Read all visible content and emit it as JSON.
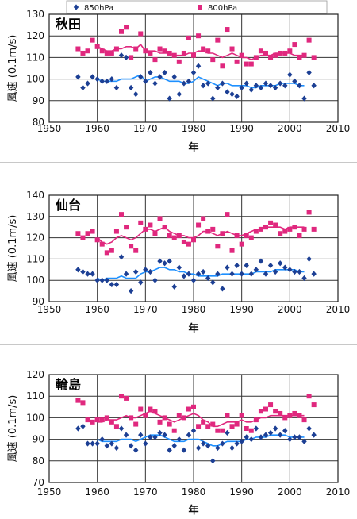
{
  "legend": {
    "s850": "850hPa",
    "s800": "800hPa"
  },
  "colors": {
    "s850": "#1c3f94",
    "s800": "#e0287e",
    "line850": "#1e90ff",
    "line800": "#e0287e"
  },
  "chart_data": [
    {
      "type": "scatter",
      "title": "秋田",
      "xlabel": "年",
      "ylabel": "風速 (0.1m/s)",
      "xlim": [
        1950,
        2010
      ],
      "ylim": [
        80,
        130
      ],
      "xticks": [
        1950,
        1960,
        1970,
        1980,
        1990,
        2000,
        2010
      ],
      "yticks": [
        80,
        90,
        100,
        110,
        120,
        130
      ],
      "grid": true,
      "legend_position": "top",
      "series": [
        {
          "name": "800hPa",
          "x": [
            1956,
            1957,
            1958,
            1959,
            1960,
            1961,
            1962,
            1963,
            1964,
            1965,
            1966,
            1967,
            1968,
            1969,
            1970,
            1971,
            1972,
            1973,
            1974,
            1975,
            1976,
            1977,
            1978,
            1979,
            1980,
            1981,
            1982,
            1983,
            1984,
            1985,
            1986,
            1987,
            1988,
            1989,
            1990,
            1991,
            1992,
            1993,
            1994,
            1995,
            1996,
            1997,
            1998,
            1999,
            2000,
            2001,
            2002,
            2003,
            2004,
            2005
          ],
          "values": [
            114,
            112,
            113,
            118,
            115,
            113,
            112,
            112,
            114,
            122,
            124,
            110,
            114,
            121,
            113,
            112,
            109,
            114,
            113,
            112,
            111,
            108,
            112,
            119,
            111,
            120,
            114,
            113,
            109,
            118,
            106,
            123,
            114,
            108,
            111,
            107,
            107,
            110,
            113,
            112,
            110,
            111,
            112,
            112,
            113,
            116,
            110,
            111,
            118,
            110
          ]
        },
        {
          "name": "850hPa",
          "x": [
            1956,
            1957,
            1958,
            1959,
            1960,
            1961,
            1962,
            1963,
            1964,
            1965,
            1966,
            1967,
            1968,
            1969,
            1970,
            1971,
            1972,
            1973,
            1974,
            1975,
            1976,
            1977,
            1978,
            1979,
            1980,
            1981,
            1982,
            1983,
            1984,
            1985,
            1986,
            1987,
            1988,
            1989,
            1990,
            1991,
            1992,
            1993,
            1994,
            1995,
            1996,
            1997,
            1998,
            1999,
            2000,
            2001,
            2002,
            2003,
            2004,
            2005
          ],
          "values": [
            101,
            96,
            98,
            101,
            100,
            99,
            99,
            100,
            96,
            111,
            110,
            96,
            93,
            101,
            99,
            103,
            98,
            101,
            103,
            91,
            101,
            93,
            98,
            99,
            103,
            106,
            97,
            98,
            91,
            96,
            98,
            94,
            93,
            92,
            96,
            98,
            95,
            97,
            96,
            98,
            97,
            96,
            98,
            97,
            102,
            99,
            97,
            91,
            103,
            97
          ]
        }
      ],
      "trend": {
        "x": [
          1960,
          1961,
          1962,
          1963,
          1964,
          1965,
          1966,
          1967,
          1968,
          1969,
          1970,
          1971,
          1972,
          1973,
          1974,
          1975,
          1976,
          1977,
          1978,
          1979,
          1980,
          1981,
          1982,
          1983,
          1984,
          1985,
          1986,
          1987,
          1988,
          1989,
          1990,
          1991,
          1992,
          1993,
          1994,
          1995,
          1996,
          1997,
          1998,
          1999,
          2000,
          2001,
          2002,
          2003
        ],
        "v800": [
          115,
          114,
          113,
          113,
          114,
          114,
          115,
          115,
          114,
          116,
          113,
          113,
          113,
          112,
          112,
          112,
          111,
          111,
          111,
          112,
          112,
          113,
          113,
          112,
          112,
          111,
          110,
          111,
          112,
          111,
          110,
          110,
          109,
          110,
          111,
          111,
          111,
          112,
          112,
          112,
          112,
          111,
          111,
          111
        ],
        "v850": [
          100,
          99,
          99,
          99,
          99,
          100,
          100,
          100,
          101,
          102,
          99,
          100,
          101,
          101,
          100,
          99,
          99,
          99,
          98,
          98,
          99,
          101,
          100,
          99,
          98,
          97,
          98,
          98,
          97,
          97,
          97,
          97,
          96,
          96,
          97,
          97,
          97,
          97,
          98,
          98,
          98,
          98,
          97,
          97
        ]
      }
    },
    {
      "type": "scatter",
      "title": "仙台",
      "xlabel": "年",
      "ylabel": "風速 (0.1m/s)",
      "xlim": [
        1950,
        2010
      ],
      "ylim": [
        90,
        140
      ],
      "xticks": [
        1950,
        1960,
        1970,
        1980,
        1990,
        2000,
        2010
      ],
      "yticks": [
        90,
        100,
        110,
        120,
        130,
        140
      ],
      "grid": true,
      "series": [
        {
          "name": "800hPa",
          "x": [
            1956,
            1957,
            1958,
            1959,
            1960,
            1961,
            1962,
            1963,
            1964,
            1965,
            1966,
            1967,
            1968,
            1969,
            1970,
            1971,
            1972,
            1973,
            1974,
            1975,
            1976,
            1977,
            1978,
            1979,
            1980,
            1981,
            1982,
            1983,
            1984,
            1985,
            1986,
            1987,
            1988,
            1989,
            1990,
            1991,
            1992,
            1993,
            1994,
            1995,
            1996,
            1997,
            1998,
            1999,
            2000,
            2001,
            2002,
            2003,
            2004,
            2005
          ],
          "values": [
            122,
            120,
            122,
            123,
            119,
            117,
            113,
            114,
            123,
            131,
            125,
            116,
            114,
            127,
            124,
            126,
            122,
            129,
            125,
            121,
            120,
            121,
            118,
            117,
            119,
            126,
            129,
            123,
            124,
            116,
            122,
            131,
            114,
            121,
            117,
            121,
            120,
            123,
            124,
            125,
            127,
            126,
            122,
            123,
            124,
            125,
            121,
            124,
            132,
            124
          ]
        },
        {
          "name": "850hPa",
          "x": [
            1956,
            1957,
            1958,
            1959,
            1960,
            1961,
            1962,
            1963,
            1964,
            1965,
            1966,
            1967,
            1968,
            1969,
            1970,
            1971,
            1972,
            1973,
            1974,
            1975,
            1976,
            1977,
            1978,
            1979,
            1980,
            1981,
            1982,
            1983,
            1984,
            1985,
            1986,
            1987,
            1988,
            1989,
            1990,
            1991,
            1992,
            1993,
            1994,
            1995,
            1996,
            1997,
            1998,
            1999,
            2000,
            2001,
            2002,
            2003,
            2004,
            2005
          ],
          "values": [
            105,
            104,
            103,
            103,
            100,
            100,
            100,
            98,
            98,
            111,
            103,
            95,
            104,
            99,
            105,
            104,
            100,
            109,
            108,
            109,
            97,
            106,
            102,
            103,
            100,
            103,
            104,
            101,
            99,
            103,
            96,
            106,
            103,
            107,
            103,
            107,
            103,
            105,
            109,
            103,
            107,
            104,
            108,
            106,
            105,
            104,
            104,
            101,
            110,
            103
          ]
        }
      ],
      "trend": {
        "x": [
          1960,
          1961,
          1962,
          1963,
          1964,
          1965,
          1966,
          1967,
          1968,
          1969,
          1970,
          1971,
          1972,
          1973,
          1974,
          1975,
          1976,
          1977,
          1978,
          1979,
          1980,
          1981,
          1982,
          1983,
          1984,
          1985,
          1986,
          1987,
          1988,
          1989,
          1990,
          1991,
          1992,
          1993,
          1994,
          1995,
          1996,
          1997,
          1998,
          1999,
          2000,
          2001,
          2002,
          2003
        ],
        "v800": [
          120,
          118,
          117,
          118,
          120,
          121,
          120,
          119,
          120,
          122,
          124,
          124,
          123,
          124,
          125,
          123,
          122,
          121,
          121,
          120,
          120,
          121,
          123,
          123,
          122,
          121,
          122,
          123,
          122,
          121,
          121,
          122,
          123,
          124,
          124,
          125,
          125,
          125,
          125,
          124,
          125,
          125,
          125,
          125
        ],
        "v850": [
          101,
          100,
          101,
          101,
          101,
          102,
          101,
          101,
          101,
          103,
          104,
          104,
          105,
          106,
          106,
          105,
          105,
          104,
          104,
          103,
          103,
          102,
          102,
          102,
          102,
          102,
          103,
          103,
          103,
          103,
          103,
          103,
          103,
          104,
          104,
          104,
          104,
          105,
          105,
          105,
          105,
          105,
          104,
          104
        ]
      }
    },
    {
      "type": "scatter",
      "title": "輪島",
      "xlabel": "年",
      "ylabel": "風速 (0.1m/s)",
      "xlim": [
        1950,
        2010
      ],
      "ylim": [
        70,
        120
      ],
      "xticks": [
        1950,
        1960,
        1970,
        1980,
        1990,
        2000,
        2010
      ],
      "yticks": [
        70,
        80,
        90,
        100,
        110,
        120
      ],
      "grid": true,
      "series": [
        {
          "name": "800hPa",
          "x": [
            1956,
            1957,
            1958,
            1959,
            1960,
            1961,
            1962,
            1963,
            1964,
            1965,
            1966,
            1967,
            1968,
            1969,
            1970,
            1971,
            1972,
            1973,
            1974,
            1975,
            1976,
            1977,
            1978,
            1979,
            1980,
            1981,
            1982,
            1983,
            1984,
            1985,
            1986,
            1987,
            1988,
            1989,
            1990,
            1991,
            1992,
            1993,
            1994,
            1995,
            1996,
            1997,
            1998,
            1999,
            2000,
            2001,
            2002,
            2003,
            2004,
            2005
          ],
          "values": [
            108,
            107,
            99,
            98,
            99,
            99,
            100,
            98,
            96,
            110,
            109,
            100,
            97,
            104,
            101,
            104,
            103,
            98,
            100,
            97,
            94,
            101,
            100,
            104,
            105,
            96,
            98,
            96,
            97,
            94,
            94,
            101,
            96,
            97,
            101,
            95,
            94,
            99,
            103,
            104,
            106,
            103,
            102,
            100,
            101,
            102,
            101,
            99,
            110,
            106
          ]
        },
        {
          "name": "850hPa",
          "x": [
            1956,
            1957,
            1958,
            1959,
            1960,
            1961,
            1962,
            1963,
            1964,
            1965,
            1966,
            1967,
            1968,
            1969,
            1970,
            1971,
            1972,
            1973,
            1974,
            1975,
            1976,
            1977,
            1978,
            1979,
            1980,
            1981,
            1982,
            1983,
            1984,
            1985,
            1986,
            1987,
            1988,
            1989,
            1990,
            1991,
            1992,
            1993,
            1994,
            1995,
            1996,
            1997,
            1998,
            1999,
            2000,
            2001,
            2002,
            2003,
            2004,
            2005
          ],
          "values": [
            95,
            96,
            88,
            88,
            88,
            90,
            87,
            88,
            86,
            95,
            92,
            87,
            85,
            92,
            88,
            91,
            91,
            93,
            92,
            85,
            87,
            90,
            85,
            92,
            94,
            86,
            88,
            87,
            80,
            86,
            88,
            93,
            86,
            88,
            89,
            91,
            90,
            95,
            91,
            92,
            93,
            95,
            92,
            94,
            90,
            91,
            91,
            89,
            95,
            92
          ]
        }
      ],
      "trend": {
        "x": [
          1960,
          1961,
          1962,
          1963,
          1964,
          1965,
          1966,
          1967,
          1968,
          1969,
          1970,
          1971,
          1972,
          1973,
          1974,
          1975,
          1976,
          1977,
          1978,
          1979,
          1980,
          1981,
          1982,
          1983,
          1984,
          1985,
          1986,
          1987,
          1988,
          1989,
          1990,
          1991,
          1992,
          1993,
          1994,
          1995,
          1996,
          1997,
          1998,
          1999,
          2000,
          2001,
          2002,
          2003
        ],
        "v800": [
          98,
          98,
          99,
          99,
          99,
          100,
          101,
          100,
          100,
          101,
          102,
          103,
          102,
          101,
          100,
          99,
          98,
          99,
          100,
          101,
          102,
          101,
          99,
          98,
          96,
          96,
          97,
          98,
          98,
          98,
          99,
          98,
          98,
          99,
          100,
          100,
          101,
          101,
          101,
          101,
          101,
          101,
          101,
          101
        ],
        "v850": [
          90,
          89,
          89,
          89,
          89,
          90,
          90,
          90,
          89,
          90,
          91,
          92,
          92,
          92,
          91,
          90,
          89,
          89,
          89,
          90,
          90,
          90,
          89,
          88,
          87,
          87,
          88,
          89,
          89,
          89,
          89,
          90,
          90,
          91,
          91,
          91,
          92,
          92,
          92,
          92,
          91,
          91,
          91,
          91
        ]
      }
    }
  ]
}
